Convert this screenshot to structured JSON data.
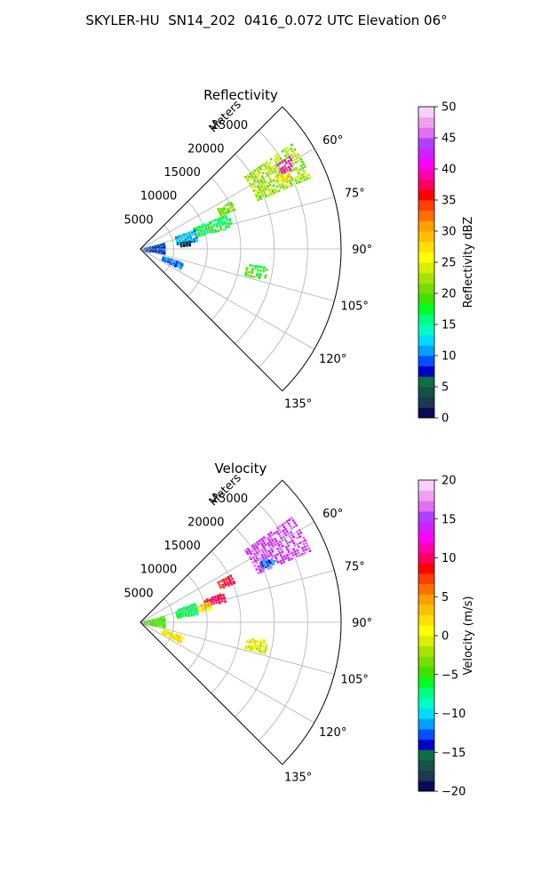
{
  "figure": {
    "title": "SKYLER-HU  SN14_202  0416_0.072 UTC Elevation 06°"
  },
  "chart_data": [
    {
      "type": "heatmap",
      "projection": "polar-sector",
      "title": "Reflectivity",
      "range_label": "Meters",
      "range_ticks": [
        5000,
        10000,
        15000,
        20000,
        25000
      ],
      "range_tick_labels": [
        "5000",
        "10000",
        "15000",
        "20000",
        "25000"
      ],
      "rlim": [
        0,
        30000
      ],
      "azimuth_range_deg": [
        45,
        135
      ],
      "azimuth_ticks": [
        60,
        75,
        90,
        105,
        120,
        135
      ],
      "azimuth_tick_labels": [
        "60°",
        "75°",
        "90°",
        "105°",
        "120°",
        "135°"
      ],
      "grid": true,
      "colorbar": {
        "label": "Reflectivity dBZ",
        "vmin": 0,
        "vmax": 50,
        "ticks": [
          0,
          5,
          10,
          15,
          20,
          25,
          30,
          35,
          40,
          45,
          50
        ],
        "tick_labels": [
          "0",
          "5",
          "10",
          "15",
          "20",
          "25",
          "30",
          "35",
          "40",
          "45",
          "50"
        ],
        "colors": [
          "#0a0a5a",
          "#1a3a50",
          "#18504a",
          "#0c7040",
          "#0000c8",
          "#0050ff",
          "#00a0ff",
          "#00dcff",
          "#00ffc0",
          "#00ff80",
          "#00ff20",
          "#40e000",
          "#78dc00",
          "#a8e400",
          "#d8f000",
          "#ffff00",
          "#ffe000",
          "#ffc000",
          "#ffa000",
          "#ff7000",
          "#ff4000",
          "#ff0000",
          "#ff0060",
          "#ff00b0",
          "#ff00ff",
          "#d020ff",
          "#b040ff",
          "#e070f0",
          "#f0a0f0",
          "#f8d0f8"
        ]
      },
      "echo_regions": [
        {
          "range_m": [
            19000,
            27500
          ],
          "azimuth_deg": [
            55,
            67
          ],
          "value_dbz": 22
        },
        {
          "range_m": [
            24000,
            26500
          ],
          "azimuth_deg": [
            58,
            62
          ],
          "value_dbz": 40
        },
        {
          "range_m": [
            23000,
            25000
          ],
          "azimuth_deg": [
            62,
            65
          ],
          "value_dbz": 26
        },
        {
          "range_m": [
            13000,
            15500
          ],
          "azimuth_deg": [
            62,
            67
          ],
          "value_dbz": 20
        },
        {
          "range_m": [
            8500,
            14000
          ],
          "azimuth_deg": [
            68,
            77
          ],
          "value_dbz": 17
        },
        {
          "range_m": [
            5500,
            8500
          ],
          "azimuth_deg": [
            70,
            81
          ],
          "value_dbz": 12
        },
        {
          "range_m": [
            6000,
            7500
          ],
          "azimuth_deg": [
            80,
            85
          ],
          "value_dbz": 3
        },
        {
          "range_m": [
            500,
            3500
          ],
          "azimuth_deg": [
            75,
            100
          ],
          "value_dbz": 8
        },
        {
          "range_m": [
            16000,
            19000
          ],
          "azimuth_deg": [
            98,
            104
          ],
          "value_dbz": 19
        },
        {
          "range_m": [
            3500,
            6500
          ],
          "azimuth_deg": [
            108,
            116
          ],
          "value_dbz": 10
        }
      ]
    },
    {
      "type": "heatmap",
      "projection": "polar-sector",
      "title": "Velocity",
      "range_label": "Meters",
      "range_ticks": [
        5000,
        10000,
        15000,
        20000,
        25000
      ],
      "range_tick_labels": [
        "5000",
        "10000",
        "15000",
        "20000",
        "25000"
      ],
      "rlim": [
        0,
        30000
      ],
      "azimuth_range_deg": [
        45,
        135
      ],
      "azimuth_ticks": [
        60,
        75,
        90,
        105,
        120,
        135
      ],
      "azimuth_tick_labels": [
        "60°",
        "75°",
        "90°",
        "105°",
        "120°",
        "135°"
      ],
      "grid": true,
      "colorbar": {
        "label": "Velocity (m/s)",
        "vmin": -20,
        "vmax": 20,
        "ticks": [
          -20,
          -15,
          -10,
          -5,
          0,
          5,
          10,
          15,
          20
        ],
        "tick_labels": [
          "−20",
          "−15",
          "−10",
          "−5",
          "0",
          "5",
          "10",
          "15",
          "20"
        ],
        "colors": [
          "#0a0a5a",
          "#1a3a50",
          "#18504a",
          "#0c7040",
          "#0000c8",
          "#0050ff",
          "#00a0ff",
          "#00dcff",
          "#00ffc0",
          "#00ff80",
          "#00ff20",
          "#40e000",
          "#78dc00",
          "#a8e400",
          "#d8f000",
          "#ffff00",
          "#ffe000",
          "#ffc000",
          "#ffa000",
          "#ff7000",
          "#ff4000",
          "#ff0000",
          "#ff0060",
          "#ff00b0",
          "#ff00ff",
          "#d020ff",
          "#b040ff",
          "#e070f0",
          "#f0a0f0",
          "#f8d0f8"
        ]
      },
      "echo_regions": [
        {
          "range_m": [
            19000,
            27500
          ],
          "azimuth_deg": [
            55,
            67
          ],
          "value_ms": 15
        },
        {
          "range_m": [
            20000,
            22000
          ],
          "azimuth_deg": [
            63,
            66
          ],
          "value_ms": -12
        },
        {
          "range_m": [
            13000,
            15500
          ],
          "azimuth_deg": [
            62,
            67
          ],
          "value_ms": 9
        },
        {
          "range_m": [
            10000,
            13000
          ],
          "azimuth_deg": [
            70,
            76
          ],
          "value_ms": 10
        },
        {
          "range_m": [
            8500,
            11000
          ],
          "azimuth_deg": [
            73,
            79
          ],
          "value_ms": 2
        },
        {
          "range_m": [
            5500,
            8500
          ],
          "azimuth_deg": [
            70,
            81
          ],
          "value_ms": -7
        },
        {
          "range_m": [
            500,
            3500
          ],
          "azimuth_deg": [
            75,
            100
          ],
          "value_ms": -4
        },
        {
          "range_m": [
            16000,
            19000
          ],
          "azimuth_deg": [
            98,
            104
          ],
          "value_ms": 0
        },
        {
          "range_m": [
            3500,
            6500
          ],
          "azimuth_deg": [
            108,
            116
          ],
          "value_ms": 1
        }
      ]
    }
  ]
}
